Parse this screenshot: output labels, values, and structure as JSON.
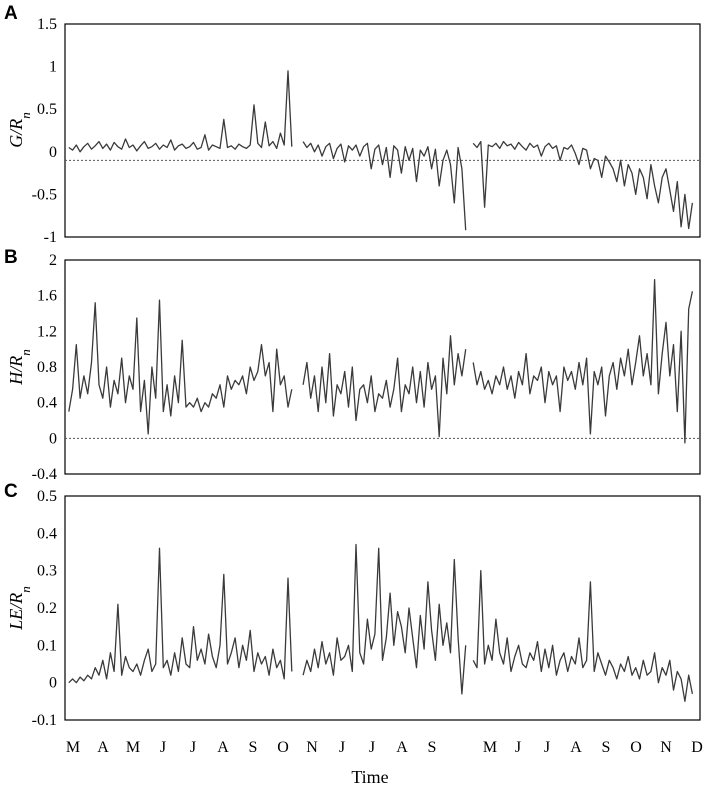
{
  "chart_data": [
    {
      "type": "line",
      "panel": "A",
      "ylabel_main": "G/R",
      "ylabel_sub": "n",
      "ylim": [
        -1,
        1.5
      ],
      "yticks": [
        "1.5",
        "1",
        "0.5",
        "0",
        "-0.5",
        "-1"
      ],
      "ytick_values": [
        1.5,
        1,
        0.5,
        0,
        -0.5,
        -1
      ],
      "reference_line": -0.1,
      "segments": [
        {
          "x0": 1,
          "x1": 60,
          "values": [
            0.05,
            0.02,
            0.08,
            0.0,
            0.06,
            0.1,
            0.03,
            0.07,
            0.12,
            0.04,
            0.09,
            0.02,
            0.11,
            0.06,
            0.03,
            0.15,
            0.05,
            0.08,
            0.01,
            0.07,
            0.12,
            0.04,
            0.06,
            0.1,
            0.03,
            0.08,
            0.05,
            0.14,
            0.02,
            0.07,
            0.09,
            0.04,
            0.06,
            0.11,
            0.03,
            0.05,
            0.2,
            0.02,
            0.08,
            0.06,
            0.04,
            0.38,
            0.05,
            0.07,
            0.03,
            0.09,
            0.06,
            0.04,
            0.08,
            0.55,
            0.1,
            0.05,
            0.35,
            0.07,
            0.12,
            0.04,
            0.22,
            0.08,
            0.95,
            0.06
          ]
        },
        {
          "x0": 63,
          "x1": 106,
          "values": [
            0.12,
            0.05,
            0.1,
            0.0,
            0.08,
            -0.05,
            0.06,
            0.1,
            -0.08,
            0.04,
            0.09,
            -0.12,
            0.07,
            0.02,
            0.08,
            -0.05,
            0.06,
            0.1,
            -0.2,
            0.03,
            0.08,
            -0.15,
            0.05,
            -0.3,
            0.07,
            0.02,
            -0.25,
            0.06,
            -0.1,
            0.04,
            -0.35,
            0.02,
            -0.05,
            0.06,
            -0.2,
            0.03,
            -0.4,
            -0.1,
            0.02,
            -0.15,
            -0.6,
            0.05,
            -0.2,
            -0.92
          ]
        },
        {
          "x0": 108,
          "x1": 166,
          "values": [
            0.1,
            0.05,
            0.12,
            -0.65,
            0.08,
            0.06,
            0.1,
            0.04,
            0.12,
            0.07,
            0.09,
            0.03,
            0.11,
            0.06,
            0.02,
            0.1,
            0.05,
            0.08,
            -0.05,
            0.06,
            0.1,
            0.04,
            0.07,
            -0.1,
            0.05,
            0.03,
            0.08,
            -0.02,
            -0.15,
            0.04,
            0.02,
            -0.2,
            -0.08,
            -0.1,
            -0.3,
            -0.05,
            -0.12,
            -0.2,
            -0.35,
            -0.1,
            -0.4,
            -0.15,
            -0.25,
            -0.5,
            -0.2,
            -0.3,
            -0.55,
            -0.15,
            -0.4,
            -0.6,
            -0.3,
            -0.2,
            -0.45,
            -0.7,
            -0.35,
            -0.88,
            -0.5,
            -0.9,
            -0.6
          ]
        }
      ]
    },
    {
      "type": "line",
      "panel": "B",
      "ylabel_main": "H/R",
      "ylabel_sub": "n",
      "ylim": [
        -0.4,
        2
      ],
      "yticks": [
        "2",
        "1.6",
        "1.2",
        "0.8",
        "0.4",
        "0",
        "-0.4"
      ],
      "ytick_values": [
        2,
        1.6,
        1.2,
        0.8,
        0.4,
        0,
        -0.4
      ],
      "reference_line": 0,
      "segments": [
        {
          "x0": 1,
          "x1": 60,
          "values": [
            0.3,
            0.55,
            1.05,
            0.45,
            0.7,
            0.5,
            0.85,
            1.52,
            0.6,
            0.45,
            0.8,
            0.35,
            0.65,
            0.5,
            0.9,
            0.4,
            0.7,
            0.55,
            1.35,
            0.3,
            0.65,
            0.05,
            0.8,
            0.45,
            1.55,
            0.3,
            0.6,
            0.25,
            0.7,
            0.4,
            1.1,
            0.35,
            0.4,
            0.35,
            0.45,
            0.3,
            0.4,
            0.35,
            0.5,
            0.45,
            0.6,
            0.35,
            0.7,
            0.55,
            0.65,
            0.6,
            0.7,
            0.5,
            0.8,
            0.65,
            0.75,
            1.05,
            0.7,
            0.85,
            0.3,
            1.0,
            0.6,
            0.7,
            0.35,
            0.55
          ]
        },
        {
          "x0": 63,
          "x1": 106,
          "values": [
            0.6,
            0.85,
            0.45,
            0.7,
            0.3,
            0.8,
            0.4,
            0.95,
            0.25,
            0.6,
            0.5,
            0.75,
            0.35,
            0.8,
            0.2,
            0.55,
            0.6,
            0.4,
            0.7,
            0.3,
            0.5,
            0.45,
            0.65,
            0.35,
            0.55,
            0.9,
            0.3,
            0.6,
            0.5,
            0.8,
            0.4,
            0.75,
            0.35,
            0.85,
            0.55,
            0.7,
            0.02,
            0.9,
            0.5,
            1.15,
            0.6,
            0.95,
            0.7,
            1.0
          ]
        },
        {
          "x0": 108,
          "x1": 166,
          "values": [
            0.85,
            0.6,
            0.75,
            0.55,
            0.65,
            0.5,
            0.7,
            0.6,
            0.8,
            0.55,
            0.7,
            0.45,
            0.75,
            0.6,
            0.95,
            0.5,
            0.7,
            0.65,
            0.8,
            0.4,
            0.75,
            0.6,
            0.7,
            0.3,
            0.8,
            0.65,
            0.75,
            0.55,
            0.85,
            0.6,
            0.9,
            0.05,
            0.75,
            0.6,
            0.8,
            0.25,
            0.7,
            0.85,
            0.55,
            0.9,
            0.7,
            1.0,
            0.6,
            0.85,
            1.15,
            0.7,
            0.95,
            0.6,
            1.78,
            0.5,
            0.95,
            1.3,
            0.7,
            1.05,
            0.3,
            1.2,
            -0.05,
            1.45,
            1.65
          ]
        }
      ]
    },
    {
      "type": "line",
      "panel": "C",
      "ylabel_main": "LE/R",
      "ylabel_sub": "n",
      "ylim": [
        -0.1,
        0.5
      ],
      "yticks": [
        "0.5",
        "0.4",
        "0.3",
        "0.2",
        "0.1",
        "0",
        "-0.1"
      ],
      "ytick_values": [
        0.5,
        0.4,
        0.3,
        0.2,
        0.1,
        0,
        -0.1
      ],
      "reference_line": null,
      "segments": [
        {
          "x0": 1,
          "x1": 60,
          "values": [
            0.0,
            0.01,
            0.0,
            0.015,
            0.005,
            0.02,
            0.01,
            0.04,
            0.02,
            0.06,
            0.01,
            0.08,
            0.03,
            0.21,
            0.02,
            0.07,
            0.04,
            0.03,
            0.05,
            0.02,
            0.06,
            0.09,
            0.03,
            0.05,
            0.36,
            0.04,
            0.06,
            0.02,
            0.08,
            0.03,
            0.12,
            0.05,
            0.04,
            0.15,
            0.06,
            0.09,
            0.05,
            0.13,
            0.07,
            0.04,
            0.1,
            0.29,
            0.05,
            0.08,
            0.12,
            0.04,
            0.1,
            0.06,
            0.14,
            0.03,
            0.08,
            0.05,
            0.07,
            0.02,
            0.09,
            0.04,
            0.06,
            0.01,
            0.28,
            0.03
          ]
        },
        {
          "x0": 63,
          "x1": 106,
          "values": [
            0.02,
            0.06,
            0.03,
            0.09,
            0.04,
            0.11,
            0.05,
            0.08,
            0.02,
            0.12,
            0.06,
            0.07,
            0.1,
            0.03,
            0.37,
            0.08,
            0.05,
            0.17,
            0.09,
            0.13,
            0.36,
            0.06,
            0.12,
            0.24,
            0.1,
            0.19,
            0.15,
            0.08,
            0.2,
            0.12,
            0.04,
            0.18,
            0.09,
            0.27,
            0.14,
            0.06,
            0.21,
            0.1,
            0.16,
            0.08,
            0.33,
            0.12,
            -0.03,
            0.1
          ]
        },
        {
          "x0": 108,
          "x1": 166,
          "values": [
            0.06,
            0.04,
            0.3,
            0.05,
            0.1,
            0.06,
            0.17,
            0.08,
            0.05,
            0.12,
            0.03,
            0.07,
            0.1,
            0.05,
            0.04,
            0.08,
            0.06,
            0.11,
            0.03,
            0.09,
            0.04,
            0.1,
            0.02,
            0.06,
            0.08,
            0.03,
            0.07,
            0.05,
            0.12,
            0.04,
            0.06,
            0.27,
            0.03,
            0.08,
            0.05,
            0.02,
            0.06,
            0.04,
            0.01,
            0.05,
            0.03,
            0.07,
            0.02,
            0.04,
            0.01,
            0.06,
            0.02,
            0.03,
            0.08,
            0.0,
            0.04,
            0.02,
            0.06,
            -0.02,
            0.03,
            0.01,
            -0.05,
            0.02,
            -0.03
          ]
        }
      ]
    }
  ],
  "xaxis": {
    "ticks": [
      "M",
      "A",
      "M",
      "J",
      "J",
      "A",
      "S",
      "O",
      "N",
      "J",
      "J",
      "A",
      "S",
      "",
      "M",
      "J",
      "J",
      "A",
      "S",
      "O",
      "N",
      "D"
    ],
    "label": "Time",
    "xmax": 168
  },
  "panel_letters": [
    "A",
    "B",
    "C"
  ]
}
